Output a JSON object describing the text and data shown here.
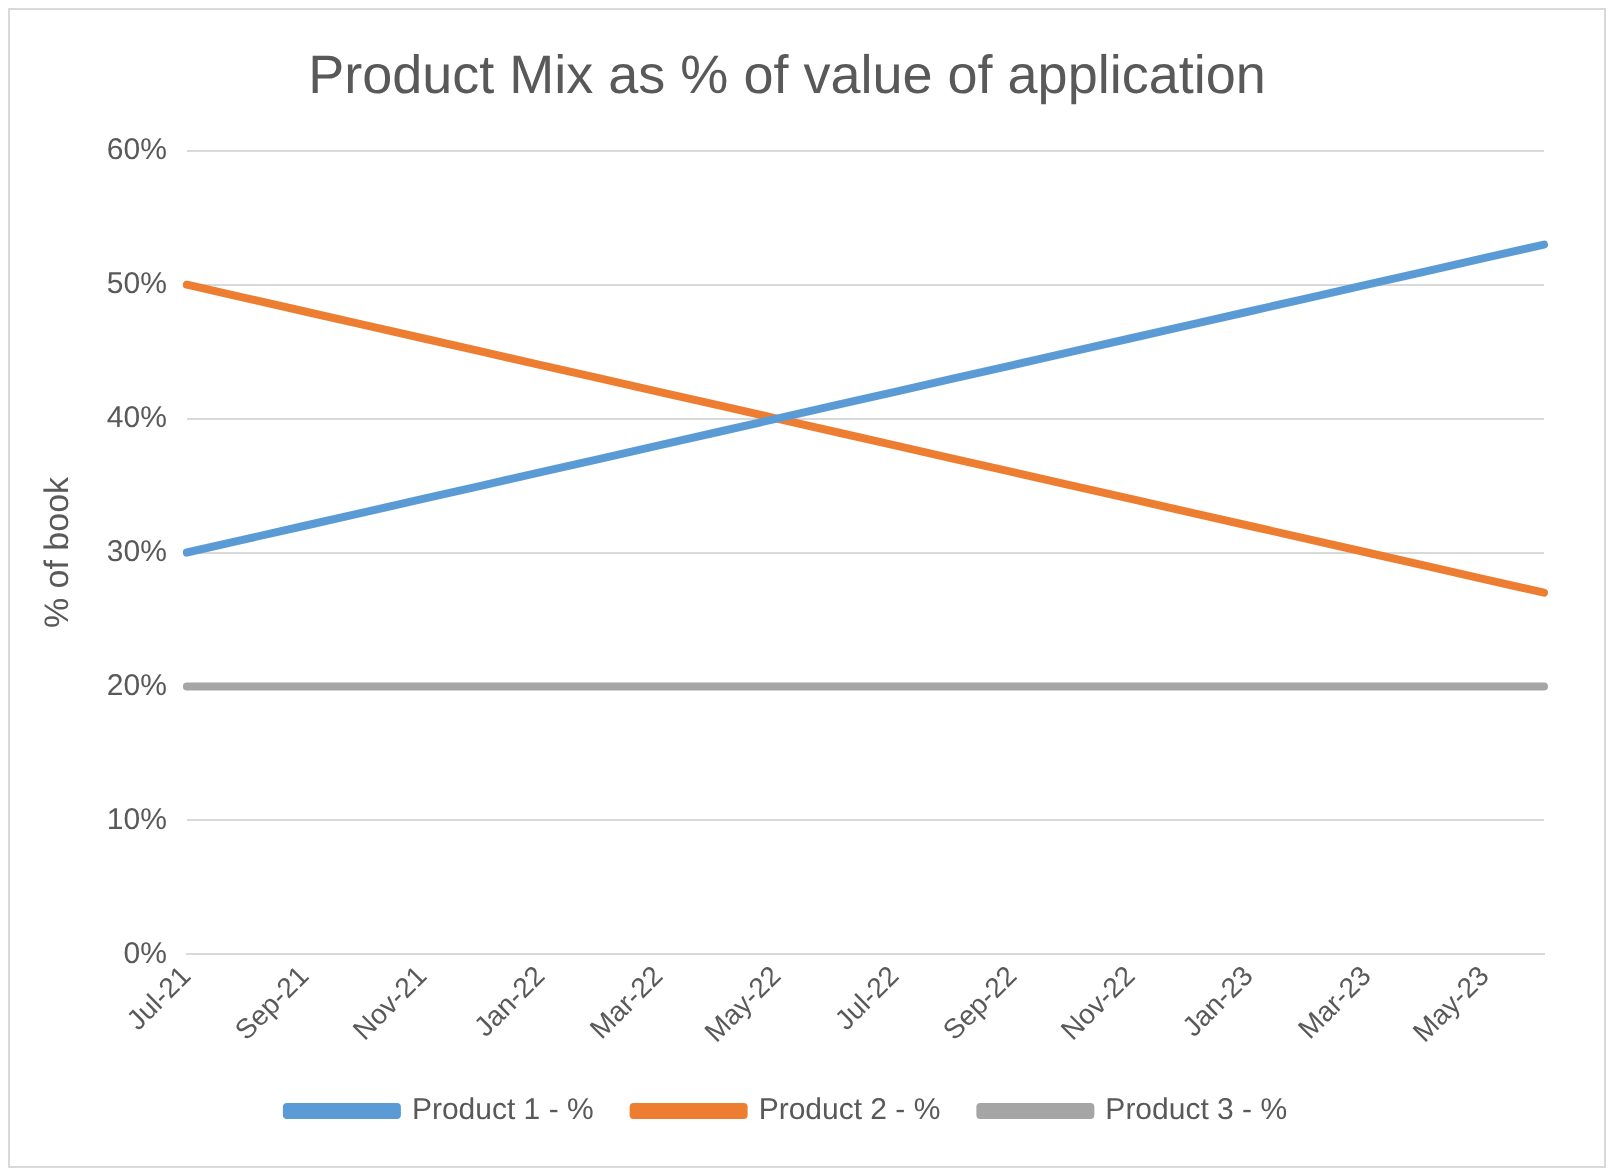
{
  "chart_data": {
    "type": "line",
    "title": "Product Mix as % of value of application",
    "ylabel": "% of book",
    "categories": [
      "Jul-21",
      null,
      "Sep-21",
      null,
      "Nov-21",
      null,
      "Jan-22",
      null,
      "Mar-22",
      null,
      "May-22",
      null,
      "Jul-22",
      null,
      "Sep-22",
      null,
      "Nov-22",
      null,
      "Jan-23",
      null,
      "Mar-23",
      null,
      "May-23",
      null
    ],
    "series": [
      {
        "name": "Product 1 - %",
        "color": "#5b9bd5",
        "values": [
          30,
          31,
          32,
          33,
          34,
          35,
          36,
          37,
          38,
          39,
          40,
          41,
          42,
          43,
          44,
          45,
          46,
          47,
          48,
          49,
          50,
          51,
          52,
          53
        ]
      },
      {
        "name": "Product 2 - %",
        "color": "#ed7d31",
        "values": [
          50,
          49,
          48,
          47,
          46,
          45,
          44,
          43,
          42,
          41,
          40,
          39,
          38,
          37,
          36,
          35,
          34,
          33,
          32,
          31,
          30,
          29,
          28,
          27
        ]
      },
      {
        "name": "Product 3 - %",
        "color": "#a5a5a5",
        "values": [
          20,
          20,
          20,
          20,
          20,
          20,
          20,
          20,
          20,
          20,
          20,
          20,
          20,
          20,
          20,
          20,
          20,
          20,
          20,
          20,
          20,
          20,
          20,
          20
        ]
      }
    ],
    "ylim": [
      0,
      60
    ],
    "yticks": [
      {
        "value": 0,
        "label": "0%"
      },
      {
        "value": 10,
        "label": "10%"
      },
      {
        "value": 20,
        "label": "20%"
      },
      {
        "value": 30,
        "label": "30%"
      },
      {
        "value": 40,
        "label": "40%"
      },
      {
        "value": 50,
        "label": "50%"
      },
      {
        "value": 60,
        "label": "60%"
      }
    ],
    "grid": "y",
    "legend": "bottom",
    "marker": "none",
    "line_style": "solid"
  }
}
